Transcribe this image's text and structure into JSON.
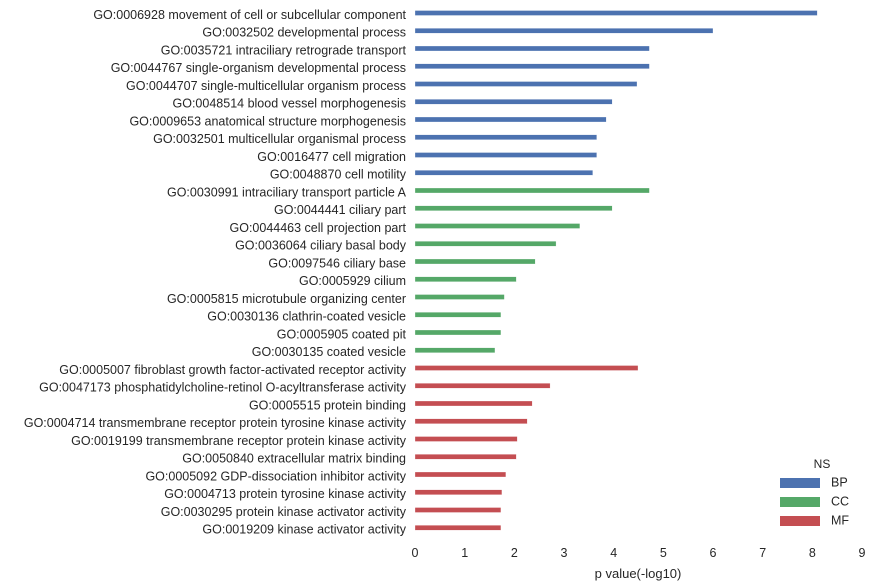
{
  "chart_data": {
    "type": "bar",
    "orientation": "horizontal",
    "xlabel": "p value(-log10)",
    "xlim": [
      0,
      9
    ],
    "xticks": [
      "0",
      "1",
      "2",
      "3",
      "4",
      "5",
      "6",
      "7",
      "8",
      "9"
    ],
    "grid": false,
    "legend": {
      "title": "NS",
      "position": "bottom-right",
      "entries": [
        {
          "name": "BP",
          "color": "#4c72b0"
        },
        {
          "name": "CC",
          "color": "#55a868"
        },
        {
          "name": "MF",
          "color": "#c44e52"
        }
      ]
    },
    "bars": [
      {
        "label": "GO:0006928 movement of cell or subcellular component",
        "value": 8.1,
        "group": "BP"
      },
      {
        "label": "GO:0032502 developmental process",
        "value": 6.0,
        "group": "BP"
      },
      {
        "label": "GO:0035721 intraciliary retrograde transport",
        "value": 4.72,
        "group": "BP"
      },
      {
        "label": "GO:0044767 single-organism developmental process",
        "value": 4.72,
        "group": "BP"
      },
      {
        "label": "GO:0044707 single-multicellular organism process",
        "value": 4.47,
        "group": "BP"
      },
      {
        "label": "GO:0048514 blood vessel morphogenesis",
        "value": 3.97,
        "group": "BP"
      },
      {
        "label": "GO:0009653 anatomical structure morphogenesis",
        "value": 3.85,
        "group": "BP"
      },
      {
        "label": "GO:0032501 multicellular organismal process",
        "value": 3.66,
        "group": "BP"
      },
      {
        "label": "GO:0016477 cell migration",
        "value": 3.66,
        "group": "BP"
      },
      {
        "label": "GO:0048870 cell motility",
        "value": 3.58,
        "group": "BP"
      },
      {
        "label": "GO:0030991 intraciliary transport particle A",
        "value": 4.72,
        "group": "CC"
      },
      {
        "label": "GO:0044441 ciliary part",
        "value": 3.97,
        "group": "CC"
      },
      {
        "label": "GO:0044463 cell projection part",
        "value": 3.32,
        "group": "CC"
      },
      {
        "label": "GO:0036064 ciliary basal body",
        "value": 2.84,
        "group": "CC"
      },
      {
        "label": "GO:0097546 ciliary base",
        "value": 2.42,
        "group": "CC"
      },
      {
        "label": "GO:0005929 cilium",
        "value": 2.04,
        "group": "CC"
      },
      {
        "label": "GO:0005815 microtubule organizing center",
        "value": 1.8,
        "group": "CC"
      },
      {
        "label": "GO:0030136 clathrin-coated vesicle",
        "value": 1.73,
        "group": "CC"
      },
      {
        "label": "GO:0005905 coated pit",
        "value": 1.73,
        "group": "CC"
      },
      {
        "label": "GO:0030135 coated vesicle",
        "value": 1.61,
        "group": "CC"
      },
      {
        "label": "GO:0005007 fibroblast growth factor-activated receptor activity",
        "value": 4.49,
        "group": "MF"
      },
      {
        "label": "GO:0047173 phosphatidylcholine-retinol O-acyltransferase activity",
        "value": 2.72,
        "group": "MF"
      },
      {
        "label": "GO:0005515 protein binding",
        "value": 2.36,
        "group": "MF"
      },
      {
        "label": "GO:0004714 transmembrane receptor protein tyrosine kinase activity",
        "value": 2.26,
        "group": "MF"
      },
      {
        "label": "GO:0019199 transmembrane receptor protein kinase activity",
        "value": 2.06,
        "group": "MF"
      },
      {
        "label": "GO:0050840 extracellular matrix binding",
        "value": 2.04,
        "group": "MF"
      },
      {
        "label": "GO:0005092 GDP-dissociation inhibitor activity",
        "value": 1.83,
        "group": "MF"
      },
      {
        "label": "GO:0004713 protein tyrosine kinase activity",
        "value": 1.75,
        "group": "MF"
      },
      {
        "label": "GO:0030295 protein kinase activator activity",
        "value": 1.73,
        "group": "MF"
      },
      {
        "label": "GO:0019209 kinase activator activity",
        "value": 1.73,
        "group": "MF"
      }
    ]
  }
}
